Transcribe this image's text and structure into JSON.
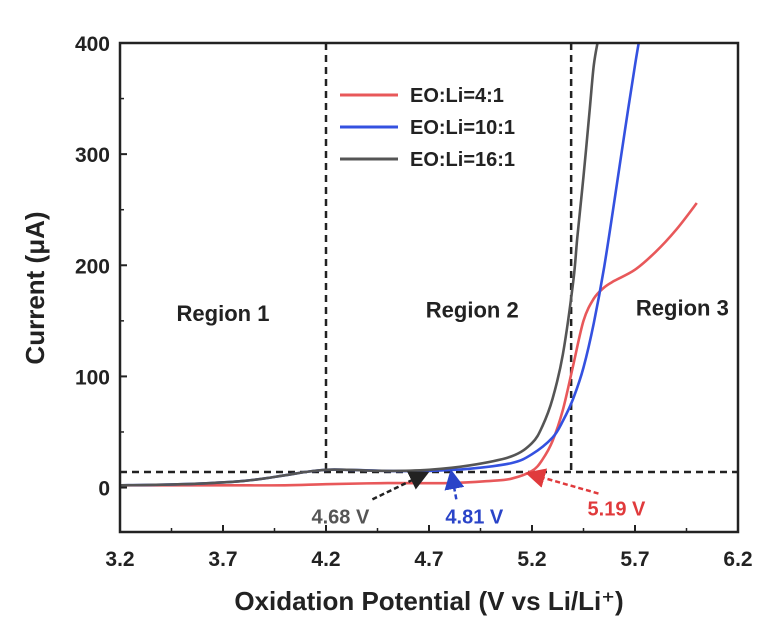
{
  "chart_data": {
    "type": "line",
    "xlabel": "Oxidation Potential (V vs Li/Li⁺)",
    "ylabel": "Current (μA)",
    "xlim": [
      3.2,
      6.2
    ],
    "ylim": [
      -40,
      400
    ],
    "xticks": [
      3.2,
      3.7,
      4.2,
      4.7,
      5.2,
      5.7,
      6.2
    ],
    "xtick_labels": [
      "3.2",
      "3.7",
      "4.2",
      "4.7",
      "5.2",
      "5.7",
      "6.2"
    ],
    "yticks": [
      0,
      100,
      200,
      300,
      400
    ],
    "ytick_labels": [
      "0",
      "100",
      "200",
      "300",
      "400"
    ],
    "grid": false,
    "legend_position": "top-center",
    "series": [
      {
        "name": "EO:Li=4:1",
        "color": "#e8585a",
        "x": [
          3.2,
          3.7,
          4.0,
          4.2,
          4.5,
          4.8,
          5.0,
          5.1,
          5.2,
          5.25,
          5.3,
          5.35,
          5.4,
          5.45,
          5.5,
          5.55,
          5.6,
          5.7,
          5.8,
          5.9,
          6.0
        ],
        "y": [
          2,
          2,
          2,
          3,
          4,
          4,
          6,
          8,
          15,
          25,
          42,
          70,
          110,
          150,
          170,
          180,
          186,
          196,
          212,
          232,
          256
        ]
      },
      {
        "name": "EO:Li=10:1",
        "color": "#3451e0",
        "x": [
          3.2,
          3.5,
          3.8,
          4.0,
          4.1,
          4.2,
          4.3,
          4.5,
          4.7,
          4.9,
          5.1,
          5.2,
          5.3,
          5.35,
          5.4,
          5.45,
          5.5,
          5.55,
          5.6,
          5.65,
          5.7,
          5.72
        ],
        "y": [
          2,
          3,
          6,
          11,
          14,
          16,
          16,
          15,
          15,
          17,
          22,
          30,
          45,
          60,
          80,
          108,
          148,
          198,
          258,
          320,
          380,
          402
        ]
      },
      {
        "name": "EO:Li=16:1",
        "color": "#555555",
        "x": [
          3.2,
          3.5,
          3.8,
          4.0,
          4.1,
          4.2,
          4.3,
          4.5,
          4.7,
          4.9,
          5.1,
          5.2,
          5.25,
          5.3,
          5.35,
          5.4,
          5.42,
          5.45,
          5.48,
          5.5,
          5.52
        ],
        "y": [
          2,
          3,
          6,
          11,
          14,
          16,
          16,
          15,
          16,
          20,
          28,
          40,
          55,
          80,
          120,
          185,
          225,
          280,
          340,
          380,
          402
        ]
      }
    ],
    "reference_lines": {
      "vertical_x": [
        4.2,
        5.39
      ],
      "horizontal_y": [
        14
      ]
    },
    "regions": [
      {
        "label": "Region 1",
        "x": 3.7,
        "y": 150
      },
      {
        "label": "Region 2",
        "x": 4.91,
        "y": 153
      },
      {
        "label": "Region 3",
        "x": 5.93,
        "y": 155
      }
    ],
    "annotations": [
      {
        "text": "4.68 V",
        "color": "#555555",
        "point": [
          4.68,
          14
        ],
        "label_at": [
          4.27,
          -25
        ]
      },
      {
        "text": "4.81 V",
        "color": "#2a44c8",
        "point": [
          4.81,
          14
        ],
        "label_at": [
          4.92,
          -25
        ]
      },
      {
        "text": "5.19 V",
        "color": "#e03a3c",
        "point": [
          5.19,
          14
        ],
        "label_at": [
          5.61,
          -18
        ]
      }
    ]
  }
}
